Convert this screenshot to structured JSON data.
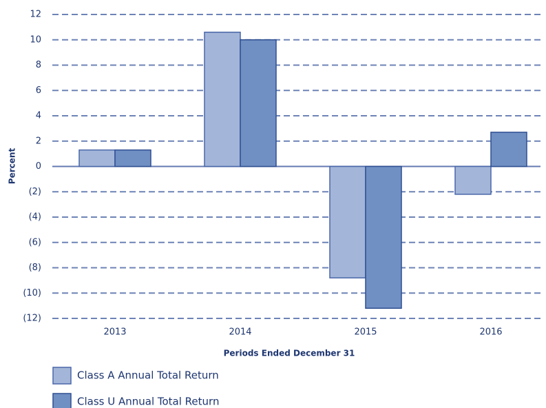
{
  "chart_data": {
    "type": "bar",
    "categories": [
      "2013",
      "2014",
      "2015",
      "2016"
    ],
    "series": [
      {
        "name": "Class A Annual Total Return",
        "color": "#a3b6d9",
        "values": [
          1.3,
          10.6,
          -8.8,
          -2.2
        ]
      },
      {
        "name": "Class U Annual Total Return",
        "color": "#7090c4",
        "values": [
          1.3,
          10.0,
          -11.2,
          2.7
        ]
      }
    ],
    "ylabel": "Percent",
    "xlabel": "Periods Ended December 31",
    "ylim": [
      -12,
      12
    ],
    "yticks": [
      {
        "value": -12,
        "label": "(12)"
      },
      {
        "value": -10,
        "label": "(10)"
      },
      {
        "value": -8,
        "label": "(8)"
      },
      {
        "value": -6,
        "label": "(6)"
      },
      {
        "value": -4,
        "label": "(4)"
      },
      {
        "value": -2,
        "label": "(2)"
      },
      0,
      2,
      4,
      6,
      8,
      10,
      12
    ],
    "grid": true
  }
}
